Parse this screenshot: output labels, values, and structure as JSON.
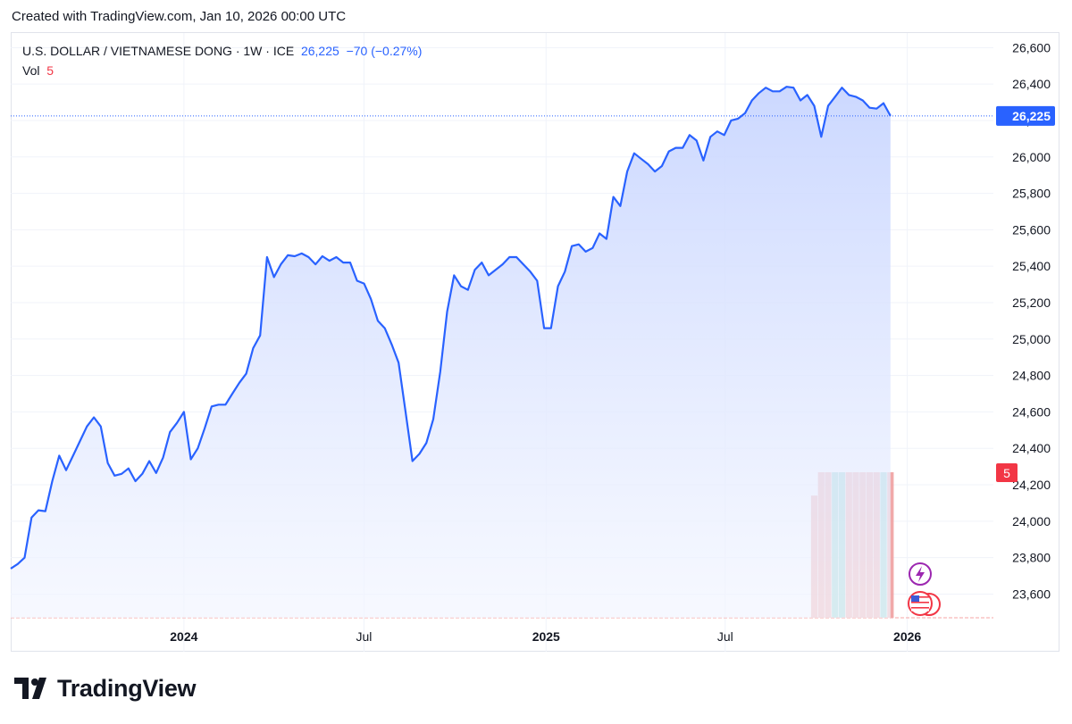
{
  "header": {
    "caption": "Created with TradingView.com, Jan 10, 2026 00:00 UTC"
  },
  "legend": {
    "symbol": "U.S. DOLLAR / VIETNAMESE DONG · 1W · ICE",
    "last": "26,225",
    "change": "−70 (−0.27%)",
    "vol_label": "Vol",
    "vol_value": "5"
  },
  "chart_data": {
    "type": "area",
    "title": "U.S. DOLLAR / VIETNAMESE DONG · 1W · ICE",
    "x_tick_labels": [
      {
        "label": "2024",
        "x": "2024-01-01"
      },
      {
        "label": "Jul",
        "x": "2024-07-01"
      },
      {
        "label": "2025",
        "x": "2025-01-01"
      },
      {
        "label": "Jul",
        "x": "2025-07-01"
      },
      {
        "label": "2026",
        "x": "2026-01-01"
      }
    ],
    "y_ticks": [
      23600,
      23800,
      24000,
      24200,
      24400,
      24600,
      24800,
      25000,
      25200,
      25400,
      25600,
      25800,
      26000,
      26200,
      26400,
      26600
    ],
    "y_tick_labels": [
      "23,600",
      "23,800",
      "24,000",
      "24,200",
      "24,400",
      "24,600",
      "24,800",
      "25,000",
      "25,200",
      "25,400",
      "25,600",
      "25,800",
      "26,000",
      "26,200",
      "26,400",
      "26,600"
    ],
    "ylim": [
      23470,
      26680
    ],
    "xlim": [
      "2023-07-10",
      "2026-03-29"
    ],
    "grid": true,
    "last_value": 26225,
    "last_value_label": "26,225",
    "volume_label": "5",
    "series": [
      {
        "name": "USD/VND",
        "color": "#2962ff",
        "points": [
          [
            "2023-07-10",
            23740
          ],
          [
            "2023-07-17",
            23765
          ],
          [
            "2023-07-24",
            23800
          ],
          [
            "2023-07-31",
            24020
          ],
          [
            "2023-08-07",
            24060
          ],
          [
            "2023-08-14",
            24055
          ],
          [
            "2023-08-21",
            24220
          ],
          [
            "2023-08-28",
            24360
          ],
          [
            "2023-09-04",
            24280
          ],
          [
            "2023-09-11",
            24360
          ],
          [
            "2023-09-18",
            24440
          ],
          [
            "2023-09-25",
            24520
          ],
          [
            "2023-10-02",
            24570
          ],
          [
            "2023-10-09",
            24520
          ],
          [
            "2023-10-16",
            24320
          ],
          [
            "2023-10-23",
            24250
          ],
          [
            "2023-10-30",
            24260
          ],
          [
            "2023-11-06",
            24290
          ],
          [
            "2023-11-13",
            24220
          ],
          [
            "2023-11-20",
            24260
          ],
          [
            "2023-11-27",
            24330
          ],
          [
            "2023-12-04",
            24265
          ],
          [
            "2023-12-11",
            24350
          ],
          [
            "2023-12-18",
            24490
          ],
          [
            "2023-12-25",
            24540
          ],
          [
            "2024-01-01",
            24600
          ],
          [
            "2024-01-08",
            24340
          ],
          [
            "2024-01-15",
            24400
          ],
          [
            "2024-01-22",
            24510
          ],
          [
            "2024-01-29",
            24630
          ],
          [
            "2024-02-05",
            24640
          ],
          [
            "2024-02-12",
            24640
          ],
          [
            "2024-02-19",
            24700
          ],
          [
            "2024-02-26",
            24760
          ],
          [
            "2024-03-04",
            24810
          ],
          [
            "2024-03-11",
            24950
          ],
          [
            "2024-03-18",
            25020
          ],
          [
            "2024-03-25",
            25450
          ],
          [
            "2024-04-01",
            25340
          ],
          [
            "2024-04-08",
            25410
          ],
          [
            "2024-04-15",
            25460
          ],
          [
            "2024-04-22",
            25455
          ],
          [
            "2024-04-29",
            25470
          ],
          [
            "2024-05-06",
            25450
          ],
          [
            "2024-05-13",
            25410
          ],
          [
            "2024-05-20",
            25455
          ],
          [
            "2024-05-27",
            25430
          ],
          [
            "2024-06-03",
            25450
          ],
          [
            "2024-06-10",
            25420
          ],
          [
            "2024-06-17",
            25420
          ],
          [
            "2024-06-24",
            25320
          ],
          [
            "2024-07-01",
            25305
          ],
          [
            "2024-07-08",
            25220
          ],
          [
            "2024-07-15",
            25100
          ],
          [
            "2024-07-22",
            25060
          ],
          [
            "2024-07-29",
            24970
          ],
          [
            "2024-08-05",
            24870
          ],
          [
            "2024-08-12",
            24600
          ],
          [
            "2024-08-19",
            24330
          ],
          [
            "2024-08-26",
            24370
          ],
          [
            "2024-09-02",
            24430
          ],
          [
            "2024-09-09",
            24560
          ],
          [
            "2024-09-16",
            24820
          ],
          [
            "2024-09-23",
            25150
          ],
          [
            "2024-09-30",
            25350
          ],
          [
            "2024-10-07",
            25290
          ],
          [
            "2024-10-14",
            25270
          ],
          [
            "2024-10-21",
            25380
          ],
          [
            "2024-10-28",
            25420
          ],
          [
            "2024-11-04",
            25350
          ],
          [
            "2024-11-11",
            25380
          ],
          [
            "2024-11-18",
            25410
          ],
          [
            "2024-11-25",
            25450
          ],
          [
            "2024-12-02",
            25450
          ],
          [
            "2024-12-09",
            25410
          ],
          [
            "2024-12-16",
            25370
          ],
          [
            "2024-12-23",
            25320
          ],
          [
            "2024-12-30",
            25060
          ],
          [
            "2025-01-06",
            25060
          ],
          [
            "2025-01-13",
            25290
          ],
          [
            "2025-01-20",
            25370
          ],
          [
            "2025-01-27",
            25510
          ],
          [
            "2025-02-03",
            25520
          ],
          [
            "2025-02-10",
            25480
          ],
          [
            "2025-02-17",
            25500
          ],
          [
            "2025-02-24",
            25580
          ],
          [
            "2025-03-03",
            25550
          ],
          [
            "2025-03-10",
            25780
          ],
          [
            "2025-03-17",
            25730
          ],
          [
            "2025-03-24",
            25920
          ],
          [
            "2025-03-31",
            26020
          ],
          [
            "2025-04-07",
            25990
          ],
          [
            "2025-04-14",
            25960
          ],
          [
            "2025-04-21",
            25920
          ],
          [
            "2025-04-28",
            25950
          ],
          [
            "2025-05-05",
            26030
          ],
          [
            "2025-05-12",
            26050
          ],
          [
            "2025-05-19",
            26050
          ],
          [
            "2025-05-26",
            26120
          ],
          [
            "2025-06-02",
            26090
          ],
          [
            "2025-06-09",
            25980
          ],
          [
            "2025-06-16",
            26110
          ],
          [
            "2025-06-23",
            26140
          ],
          [
            "2025-06-30",
            26120
          ],
          [
            "2025-07-07",
            26200
          ],
          [
            "2025-07-14",
            26210
          ],
          [
            "2025-07-21",
            26240
          ],
          [
            "2025-07-28",
            26310
          ],
          [
            "2025-08-04",
            26350
          ],
          [
            "2025-08-11",
            26380
          ],
          [
            "2025-08-18",
            26360
          ],
          [
            "2025-08-25",
            26360
          ],
          [
            "2025-09-01",
            26385
          ],
          [
            "2025-09-08",
            26380
          ],
          [
            "2025-09-15",
            26310
          ],
          [
            "2025-09-22",
            26340
          ],
          [
            "2025-09-29",
            26280
          ],
          [
            "2025-10-06",
            26110
          ],
          [
            "2025-10-13",
            26280
          ],
          [
            "2025-10-20",
            26330
          ],
          [
            "2025-10-27",
            26380
          ],
          [
            "2025-11-03",
            26340
          ],
          [
            "2025-11-10",
            26330
          ],
          [
            "2025-11-17",
            26310
          ],
          [
            "2025-11-24",
            26270
          ],
          [
            "2025-12-01",
            26265
          ],
          [
            "2025-12-08",
            26295
          ],
          [
            "2025-12-15",
            26225
          ]
        ]
      }
    ],
    "volume_bars": [
      {
        "x": "2025-09-29",
        "ratio": 0.84,
        "color": "#ef9a9a"
      },
      {
        "x": "2025-10-06",
        "ratio": 1.0,
        "color": "#ef9a9a"
      },
      {
        "x": "2025-10-13",
        "ratio": 1.0,
        "color": "#ef9a9a"
      },
      {
        "x": "2025-10-20",
        "ratio": 1.0,
        "color": "#80cbc4"
      },
      {
        "x": "2025-10-27",
        "ratio": 1.0,
        "color": "#80cbc4"
      },
      {
        "x": "2025-11-03",
        "ratio": 1.0,
        "color": "#ef9a9a"
      },
      {
        "x": "2025-11-10",
        "ratio": 1.0,
        "color": "#ef9a9a"
      },
      {
        "x": "2025-11-17",
        "ratio": 1.0,
        "color": "#ef9a9a"
      },
      {
        "x": "2025-11-24",
        "ratio": 1.0,
        "color": "#ef9a9a"
      },
      {
        "x": "2025-12-01",
        "ratio": 1.0,
        "color": "#ef9a9a"
      },
      {
        "x": "2025-12-08",
        "ratio": 1.0,
        "color": "#80cbc4"
      },
      {
        "x": "2025-12-15",
        "ratio": 1.0,
        "color": "#ef9a9a"
      }
    ]
  },
  "event_icons": [
    {
      "name": "lightning-icon",
      "color": "#9c27b0"
    },
    {
      "name": "us-flag-icon",
      "color": "#f23645"
    }
  ],
  "colors": {
    "line": "#2962ff",
    "area_top": "#c9d6ff",
    "area_bottom": "#f3f6ff",
    "grid": "#f0f3fa",
    "price_label_bg": "#2962ff",
    "volume_label_bg": "#f23645"
  },
  "brand": {
    "name": "TradingView"
  }
}
